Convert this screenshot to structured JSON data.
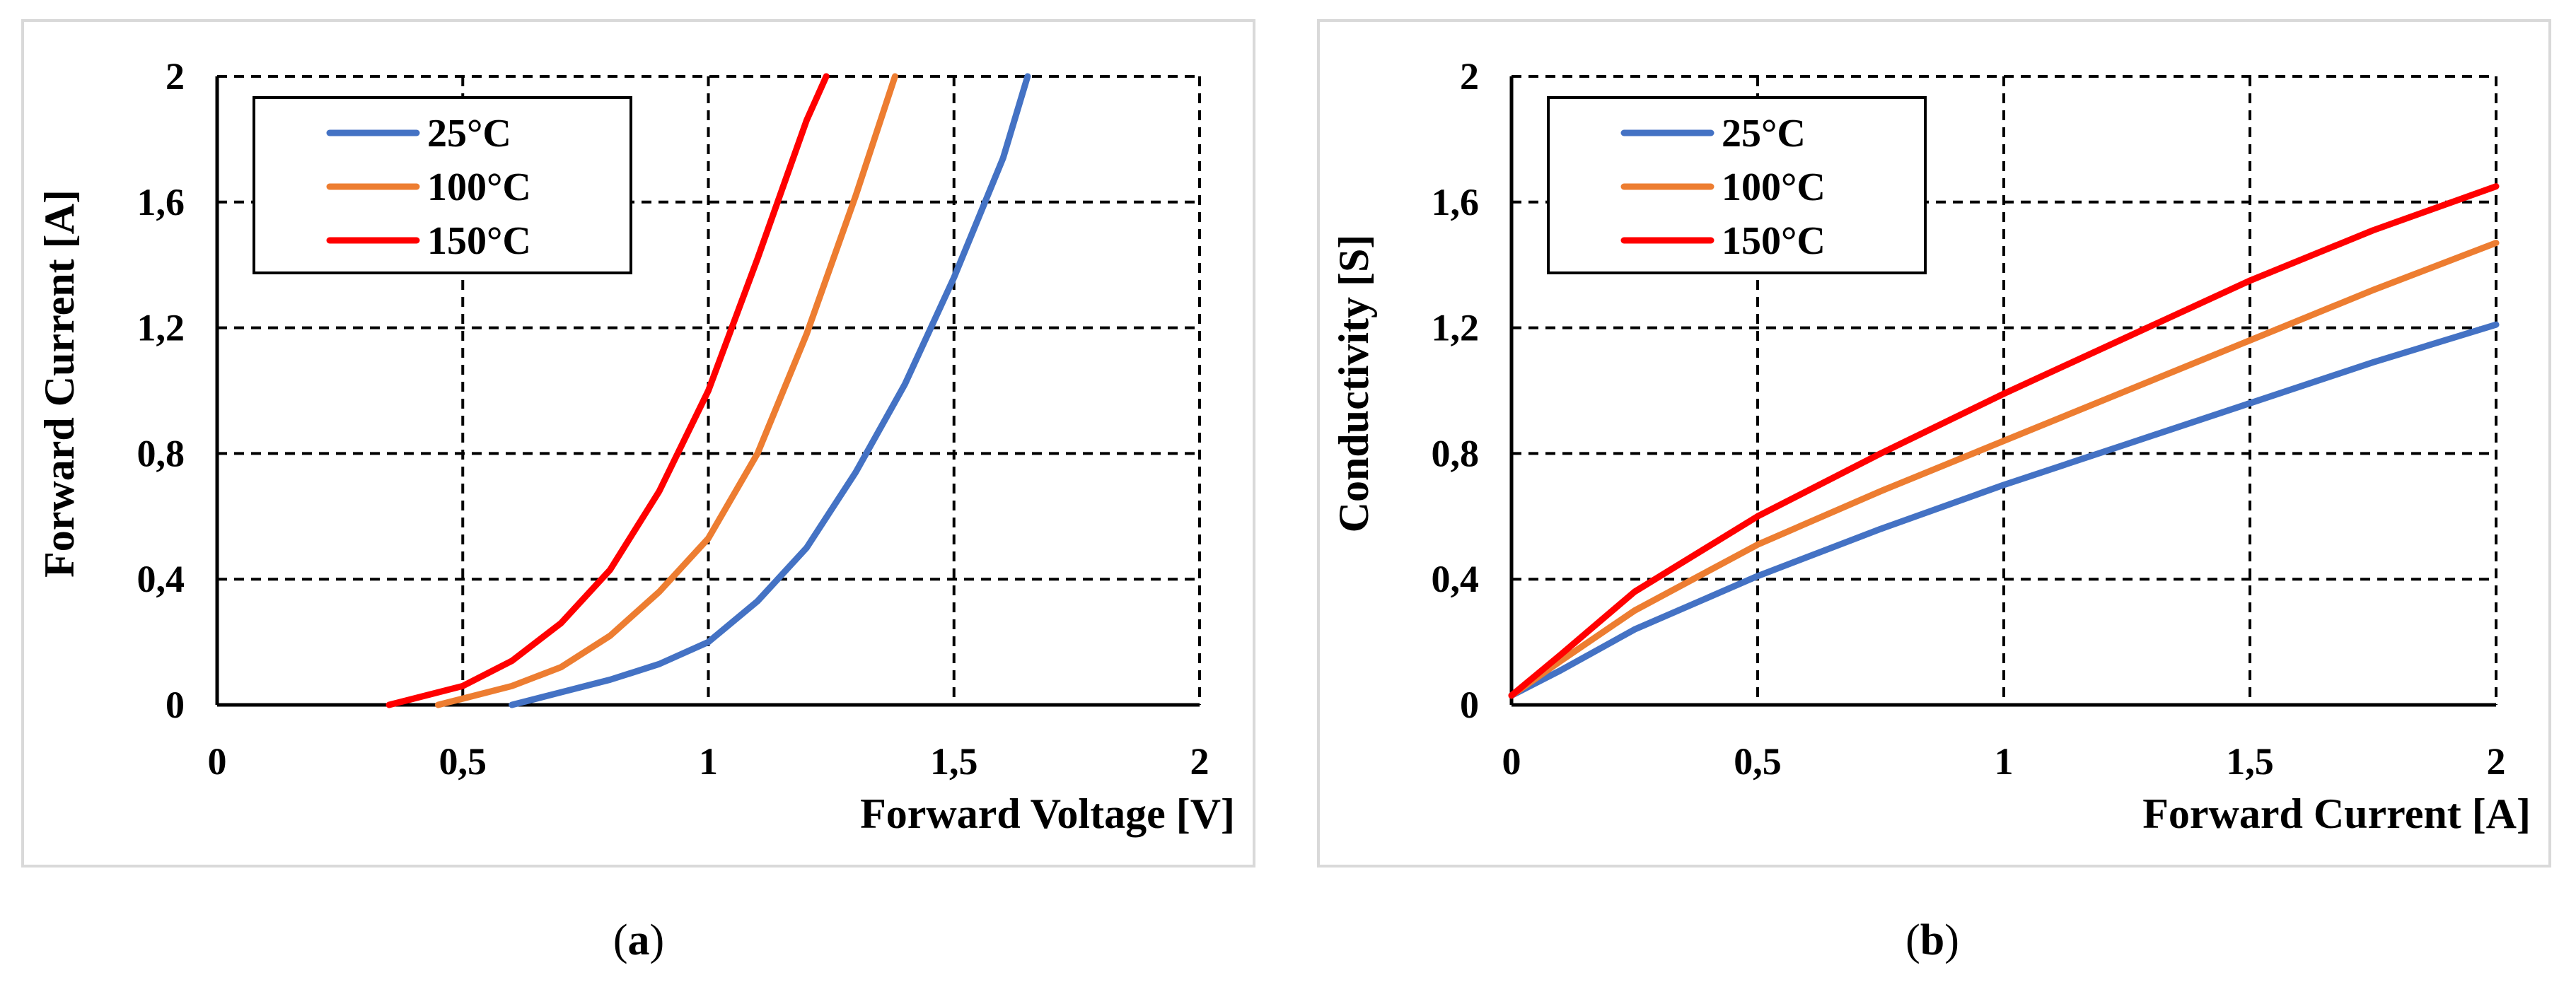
{
  "colors": {
    "series_25": "#4472C4",
    "series_100": "#ED7D31",
    "series_150": "#FF0000",
    "grid": "#000000",
    "frame": "#d9d9d9"
  },
  "captions": {
    "a": {
      "open": "(",
      "letter": "a",
      "close": ")"
    },
    "b": {
      "open": "(",
      "letter": "b",
      "close": ")"
    }
  },
  "chart_data": [
    {
      "id": "a",
      "type": "line",
      "xlabel": "Forward Voltage [V]",
      "ylabel": "Forward Current [A]",
      "xlim": [
        0,
        2
      ],
      "ylim": [
        0,
        2
      ],
      "xticks": [
        0,
        0.5,
        1,
        1.5,
        2
      ],
      "xtick_labels": [
        "0",
        "0,5",
        "1",
        "1,5",
        "2"
      ],
      "yticks": [
        0,
        0.4,
        0.8,
        1.2,
        1.6,
        2
      ],
      "ytick_labels": [
        "0",
        "0,4",
        "0,8",
        "1,2",
        "1,6",
        "2"
      ],
      "grid": "dashed",
      "legend_position": "top-left",
      "series": [
        {
          "name": "25°C",
          "color": "#4472C4",
          "x": [
            0.6,
            0.7,
            0.8,
            0.9,
            1.0,
            1.1,
            1.2,
            1.3,
            1.4,
            1.5,
            1.6,
            1.65
          ],
          "y": [
            0.0,
            0.04,
            0.08,
            0.13,
            0.2,
            0.33,
            0.5,
            0.74,
            1.02,
            1.36,
            1.74,
            2.0
          ]
        },
        {
          "name": "100°C",
          "color": "#ED7D31",
          "x": [
            0.45,
            0.5,
            0.6,
            0.7,
            0.8,
            0.9,
            1.0,
            1.1,
            1.2,
            1.3,
            1.38
          ],
          "y": [
            0.0,
            0.02,
            0.06,
            0.12,
            0.22,
            0.36,
            0.53,
            0.8,
            1.18,
            1.62,
            2.0
          ]
        },
        {
          "name": "150°C",
          "color": "#FF0000",
          "x": [
            0.35,
            0.4,
            0.5,
            0.6,
            0.7,
            0.8,
            0.9,
            1.0,
            1.1,
            1.2,
            1.24
          ],
          "y": [
            0.0,
            0.02,
            0.06,
            0.14,
            0.26,
            0.43,
            0.68,
            1.0,
            1.42,
            1.86,
            2.0
          ]
        }
      ]
    },
    {
      "id": "b",
      "type": "line",
      "xlabel": "Forward Current [A]",
      "ylabel": "Conductivity [S]",
      "xlim": [
        0,
        2
      ],
      "ylim": [
        0,
        2
      ],
      "xticks": [
        0,
        0.5,
        1,
        1.5,
        2
      ],
      "xtick_labels": [
        "0",
        "0,5",
        "1",
        "1,5",
        "2"
      ],
      "yticks": [
        0,
        0.4,
        0.8,
        1.2,
        1.6,
        2
      ],
      "ytick_labels": [
        "0",
        "0,4",
        "0,8",
        "1,2",
        "1,6",
        "2"
      ],
      "grid": "dashed",
      "legend_position": "top-left",
      "series": [
        {
          "name": "25°C",
          "color": "#4472C4",
          "x": [
            0,
            0.1,
            0.25,
            0.5,
            0.75,
            1.0,
            1.25,
            1.5,
            1.75,
            2.0
          ],
          "y": [
            0.03,
            0.11,
            0.24,
            0.41,
            0.56,
            0.7,
            0.83,
            0.96,
            1.09,
            1.21
          ]
        },
        {
          "name": "100°C",
          "color": "#ED7D31",
          "x": [
            0,
            0.1,
            0.25,
            0.5,
            0.75,
            1.0,
            1.25,
            1.5,
            1.75,
            2.0
          ],
          "y": [
            0.03,
            0.14,
            0.3,
            0.51,
            0.68,
            0.84,
            1.0,
            1.16,
            1.32,
            1.47
          ]
        },
        {
          "name": "150°C",
          "color": "#FF0000",
          "x": [
            0,
            0.1,
            0.25,
            0.5,
            0.75,
            1.0,
            1.25,
            1.5,
            1.75,
            2.0
          ],
          "y": [
            0.03,
            0.16,
            0.36,
            0.6,
            0.8,
            0.99,
            1.17,
            1.35,
            1.51,
            1.65
          ]
        }
      ]
    }
  ]
}
